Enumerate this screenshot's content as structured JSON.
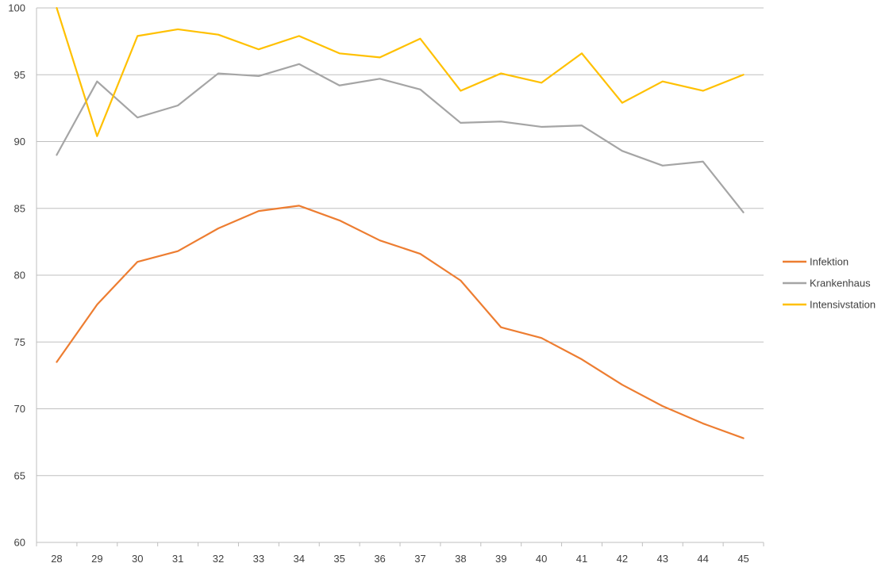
{
  "chart_data": {
    "type": "line",
    "x": [
      28,
      29,
      30,
      31,
      32,
      33,
      34,
      35,
      36,
      37,
      38,
      39,
      40,
      41,
      42,
      43,
      44,
      45
    ],
    "xlabel": "",
    "ylabel": "",
    "ylim": [
      60,
      100
    ],
    "yticks": [
      60,
      65,
      70,
      75,
      80,
      85,
      90,
      95,
      100
    ],
    "grid": true,
    "legend_position": "right",
    "series": [
      {
        "name": "Infektion",
        "color": "#ED7D31",
        "values": [
          73.5,
          77.8,
          81.0,
          81.8,
          83.5,
          84.8,
          85.2,
          84.1,
          82.6,
          81.6,
          79.6,
          76.1,
          75.3,
          73.7,
          71.8,
          70.2,
          68.9,
          67.8
        ]
      },
      {
        "name": "Krankenhaus",
        "color": "#A5A5A5",
        "values": [
          89.0,
          94.5,
          91.8,
          92.7,
          95.1,
          94.9,
          95.8,
          94.2,
          94.7,
          93.9,
          91.4,
          91.5,
          91.1,
          91.2,
          89.3,
          88.2,
          88.5,
          84.7
        ]
      },
      {
        "name": "Intensivstation",
        "color": "#FFC000",
        "values": [
          100.0,
          90.4,
          97.9,
          98.4,
          98.0,
          96.9,
          97.9,
          96.6,
          96.3,
          97.7,
          93.8,
          95.1,
          94.4,
          96.6,
          92.9,
          94.5,
          93.8,
          95.0
        ]
      }
    ]
  }
}
